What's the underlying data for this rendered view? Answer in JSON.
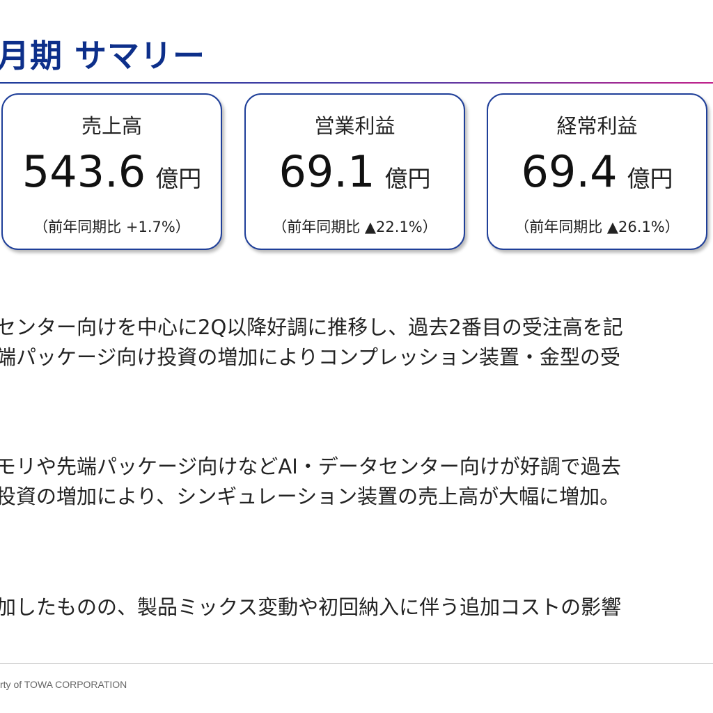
{
  "header": {
    "title": "月期 サマリー"
  },
  "cards": [
    {
      "label": "売上高",
      "value": "543.6",
      "unit": "億円",
      "note": "（前年同期比 +1.7%）"
    },
    {
      "label": "営業利益",
      "value": "69.1",
      "unit": "億円",
      "note": "（前年同期比 ▲22.1%）"
    },
    {
      "label": "経常利益",
      "value": "69.4",
      "unit": "億円",
      "note": "（前年同期比 ▲26.1%）"
    }
  ],
  "sections": [
    {
      "lines": [
        "センター向けを中心に2Q以降好調に推移し、過去2番目の受注高を記",
        "端パッケージ向け投資の増加によりコンプレッション装置・金型の受"
      ]
    },
    {
      "lines": [
        "モリや先端パッケージ向けなどAI・データセンター向けが好調で過去",
        "投資の増加により、シンギュレーション装置の売上高が大幅に増加。"
      ]
    },
    {
      "lines": [
        "加したものの、製品ミックス変動や初回納入に伴う追加コストの影響"
      ]
    }
  ],
  "footer": {
    "text": "rty of TOWA CORPORATION"
  },
  "colors": {
    "title": "#0d2f8a",
    "card_border": "#1f3f99",
    "rule_start": "#1c3a9a",
    "rule_end": "#c0208a"
  }
}
